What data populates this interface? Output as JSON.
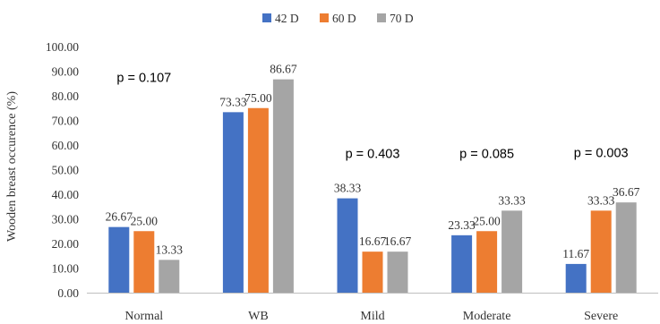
{
  "chart_data": {
    "type": "bar",
    "title": "",
    "xlabel": "",
    "ylabel": "Wooden breast occurence (%)",
    "ylim": [
      0,
      100
    ],
    "yticks": [
      "0.00",
      "10.00",
      "20.00",
      "30.00",
      "40.00",
      "50.00",
      "60.00",
      "70.00",
      "80.00",
      "90.00",
      "100.00"
    ],
    "categories": [
      "Normal",
      "WB",
      "Mild",
      "Moderate",
      "Severe"
    ],
    "series": [
      {
        "name": "42 D",
        "color": "#4472c4",
        "values": [
          26.67,
          73.33,
          38.33,
          23.33,
          11.67
        ],
        "labels": [
          "26.67",
          "73.33",
          "38.33",
          "23.33",
          "11.67"
        ]
      },
      {
        "name": "60 D",
        "color": "#ed7d31",
        "values": [
          25.0,
          75.0,
          16.67,
          25.0,
          33.33
        ],
        "labels": [
          "25.00",
          "75.00",
          "16.67",
          "25.00",
          "33.33"
        ]
      },
      {
        "name": "70 D",
        "color": "#a5a5a5",
        "values": [
          13.33,
          86.67,
          16.67,
          33.33,
          36.67
        ],
        "labels": [
          "13.33",
          "86.67",
          "16.67",
          "33.33",
          "36.67"
        ]
      }
    ],
    "annotations": [
      {
        "text": "p = 0.107",
        "category": "Normal",
        "y": 87.5
      },
      {
        "text": "p = 0.403",
        "category": "Mild",
        "y": 56.5
      },
      {
        "text": "p = 0.085",
        "category": "Moderate",
        "y": 56.5
      },
      {
        "text": "p = 0.003",
        "category": "Severe",
        "y": 57
      }
    ],
    "legend_position": "top-center",
    "grid": false
  }
}
